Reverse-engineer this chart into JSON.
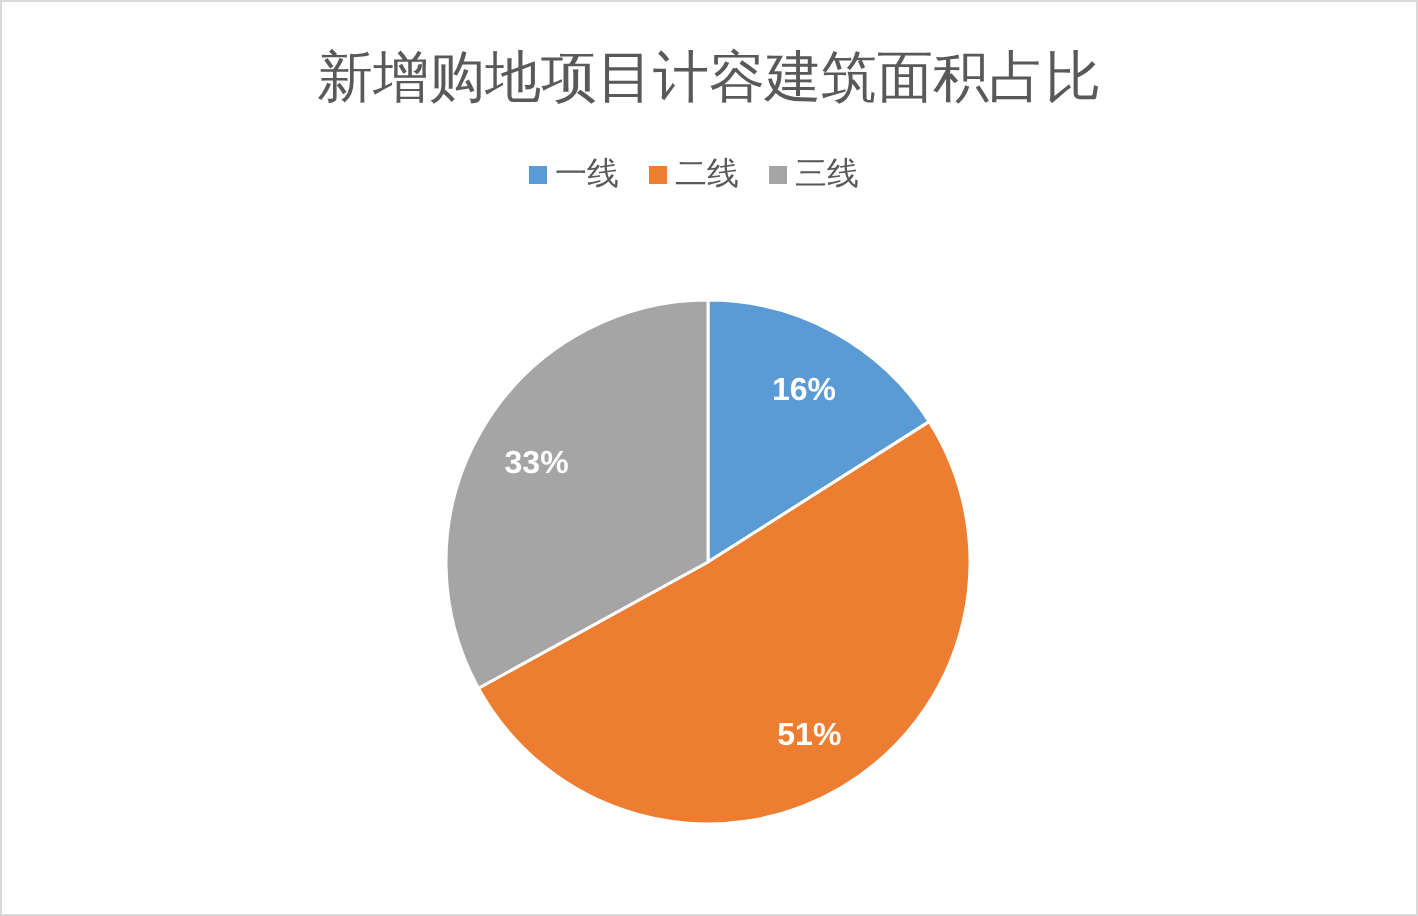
{
  "chart_data": {
    "type": "pie",
    "title": "新增购地项目计容建筑面积占比",
    "categories": [
      "一线",
      "二线",
      "三线"
    ],
    "values": [
      16,
      51,
      33
    ],
    "colors": [
      "#5b9bd5",
      "#ed7d31",
      "#a5a5a5"
    ],
    "value_labels": [
      "16%",
      "51%",
      "33%"
    ],
    "legend": "top"
  }
}
